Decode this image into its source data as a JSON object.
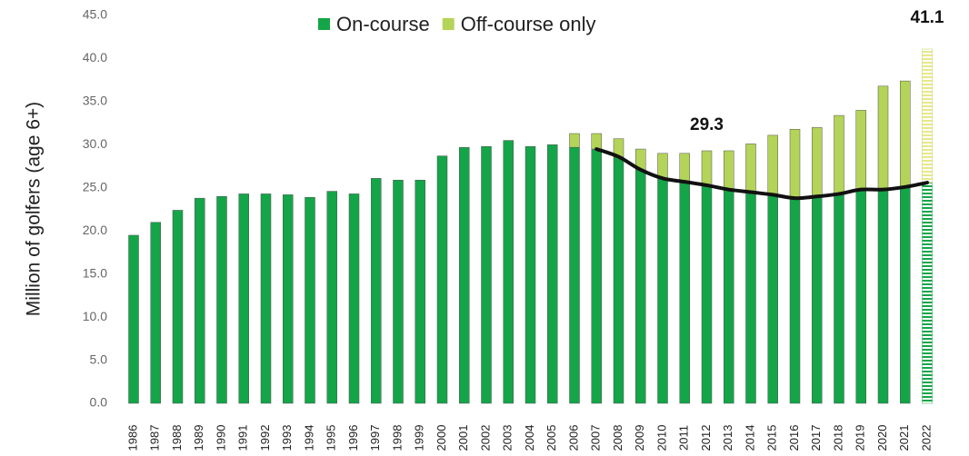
{
  "chart_data": {
    "type": "stacked_bar",
    "y_label": "Million of golfers (age 6+)",
    "categories": [
      "1986",
      "1987",
      "1988",
      "1989",
      "1990",
      "1991",
      "1992",
      "1993",
      "1994",
      "1995",
      "1996",
      "1997",
      "1998",
      "1999",
      "2000",
      "2001",
      "2002",
      "2003",
      "2004",
      "2005",
      "2006",
      "2007",
      "2008",
      "2009",
      "2010",
      "2011",
      "2012",
      "2013",
      "2014",
      "2015",
      "2016",
      "2017",
      "2018",
      "2019",
      "2020",
      "2021",
      "2022"
    ],
    "series": [
      {
        "name": "On-course",
        "color": "#14a548",
        "values": [
          19.5,
          21.0,
          22.4,
          23.8,
          24.0,
          24.3,
          24.3,
          24.2,
          23.9,
          24.6,
          24.3,
          26.1,
          25.9,
          25.9,
          28.7,
          29.7,
          29.8,
          30.5,
          29.8,
          30.0,
          29.7,
          29.5,
          28.6,
          27.1,
          26.1,
          25.7,
          25.3,
          24.8,
          24.5,
          24.2,
          23.8,
          24.0,
          24.3,
          24.8,
          24.8,
          25.1,
          25.6
        ]
      },
      {
        "name": "Off-course only",
        "color": "#b3d458",
        "values": [
          0,
          0,
          0,
          0,
          0,
          0,
          0,
          0,
          0,
          0,
          0,
          0,
          0,
          0,
          0,
          0,
          0,
          0,
          0,
          0,
          1.6,
          1.8,
          2.1,
          2.4,
          2.9,
          3.3,
          4.0,
          4.5,
          5.6,
          6.9,
          8.0,
          8.0,
          9.1,
          9.2,
          12.0,
          12.3,
          15.5
        ]
      }
    ],
    "total_labels": [
      {
        "category": "2012",
        "label": "29.3"
      },
      {
        "category": "2022",
        "label": "41.1"
      }
    ],
    "trend": {
      "series": 0,
      "from": "2007",
      "to": "2022",
      "color": "#111111"
    },
    "hatched_categories": [
      "2022"
    ],
    "ylim": [
      0,
      45
    ],
    "yticks": [
      {
        "value": 0,
        "label": "0.0"
      },
      {
        "value": 5,
        "label": "5.0"
      },
      {
        "value": 10,
        "label": "10.0"
      },
      {
        "value": 15,
        "label": "15.0"
      },
      {
        "value": 20,
        "label": "20.0"
      },
      {
        "value": 25,
        "label": "25.0"
      },
      {
        "value": 30,
        "label": "30.0"
      },
      {
        "value": 35,
        "label": "35.0"
      },
      {
        "value": 40,
        "label": "40.0"
      },
      {
        "value": 45,
        "label": "45.0"
      }
    ],
    "legend": "top"
  }
}
